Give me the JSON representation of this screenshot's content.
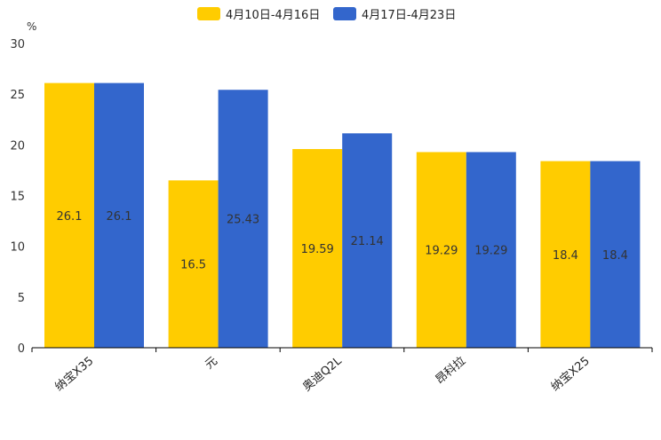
{
  "chart_data": {
    "type": "bar",
    "ylabel": "%",
    "ylim": [
      0,
      30
    ],
    "yticks": [
      0,
      5,
      10,
      15,
      20,
      25,
      30
    ],
    "categories": [
      "纳宝X35",
      "元",
      "奥迪Q2L",
      "昂科拉",
      "纳宝X25"
    ],
    "series": [
      {
        "name": "4月10日-4月16日",
        "color": "#FFCC00",
        "values": [
          26.1,
          16.5,
          19.59,
          19.29,
          18.4
        ]
      },
      {
        "name": "4月17日-4月23日",
        "color": "#3366CC",
        "values": [
          26.1,
          25.43,
          21.14,
          19.29,
          18.4
        ]
      }
    ],
    "legend_position": "top-center",
    "grid": false
  }
}
